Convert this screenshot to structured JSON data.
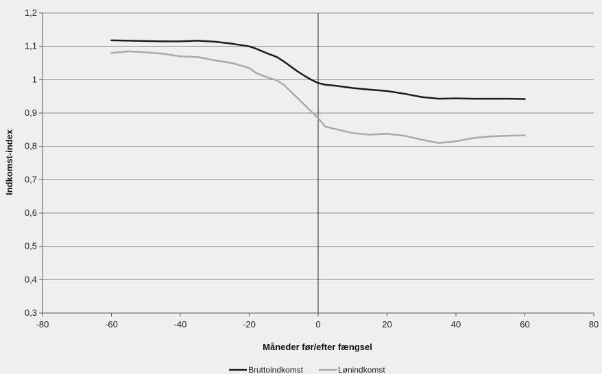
{
  "chart_data": {
    "type": "line",
    "title": "",
    "xlabel": "Måneder før/efter fængsel",
    "ylabel": "Indkomst-index",
    "xlim": [
      -80,
      80
    ],
    "ylim": [
      0.3,
      1.2
    ],
    "xticks": [
      -80,
      -60,
      -40,
      -20,
      0,
      20,
      40,
      60,
      80
    ],
    "xtick_labels": [
      "-80",
      "-60",
      "-40",
      "-20",
      "0",
      "20",
      "40",
      "60",
      "80"
    ],
    "yticks": [
      0.3,
      0.4,
      0.5,
      0.6,
      0.7,
      0.8,
      0.9,
      1.0,
      1.1,
      1.2
    ],
    "ytick_labels": [
      "0,3",
      "0,4",
      "0,5",
      "0,6",
      "0,7",
      "0,8",
      "0,9",
      "1",
      "1,1",
      "1,2"
    ],
    "grid": "horizontal",
    "reference_line_x": 0,
    "legend_position": "bottom-center",
    "series": [
      {
        "name": "Bruttoindkomst",
        "color": "#1a1a1a",
        "x": [
          -60,
          -55,
          -50,
          -45,
          -40,
          -35,
          -30,
          -25,
          -20,
          -18,
          -15,
          -12,
          -10,
          -8,
          -6,
          -4,
          -2,
          0,
          2,
          5,
          10,
          15,
          20,
          25,
          30,
          35,
          40,
          45,
          50,
          55,
          60
        ],
        "y": [
          1.118,
          1.117,
          1.116,
          1.115,
          1.115,
          1.117,
          1.114,
          1.108,
          1.1,
          1.093,
          1.08,
          1.068,
          1.055,
          1.04,
          1.025,
          1.012,
          1.0,
          0.99,
          0.985,
          0.982,
          0.975,
          0.97,
          0.966,
          0.958,
          0.948,
          0.943,
          0.944,
          0.943,
          0.943,
          0.943,
          0.942
        ]
      },
      {
        "name": "Lønindkomst",
        "color": "#a9a9a9",
        "x": [
          -60,
          -55,
          -50,
          -45,
          -40,
          -35,
          -30,
          -25,
          -20,
          -18,
          -15,
          -12,
          -10,
          -8,
          -6,
          -4,
          -2,
          0,
          2,
          5,
          10,
          15,
          20,
          25,
          30,
          35,
          40,
          45,
          50,
          55,
          60
        ],
        "y": [
          1.08,
          1.085,
          1.082,
          1.078,
          1.07,
          1.068,
          1.058,
          1.05,
          1.035,
          1.02,
          1.008,
          0.998,
          0.985,
          0.965,
          0.945,
          0.925,
          0.905,
          0.885,
          0.86,
          0.852,
          0.84,
          0.835,
          0.838,
          0.832,
          0.82,
          0.81,
          0.815,
          0.825,
          0.83,
          0.832,
          0.833
        ]
      }
    ]
  }
}
